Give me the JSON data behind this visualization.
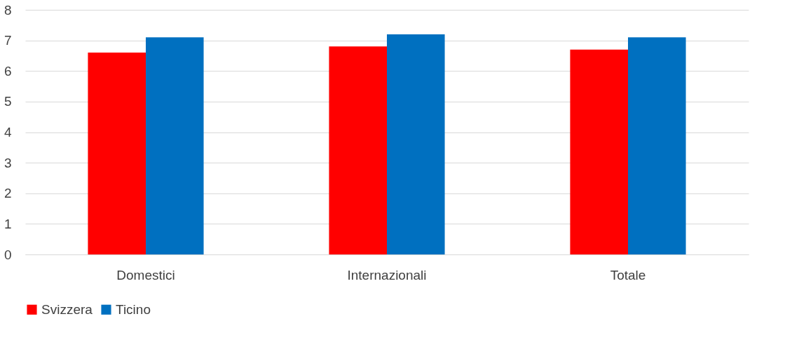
{
  "chart_data": {
    "type": "bar",
    "categories": [
      "Domestici",
      "Internazionali",
      "Totale"
    ],
    "series": [
      {
        "name": "Svizzera",
        "color": "#ff0000",
        "values": [
          6.6,
          6.8,
          6.7
        ]
      },
      {
        "name": "Ticino",
        "color": "#0070c0",
        "values": [
          7.1,
          7.2,
          7.1
        ]
      }
    ],
    "ylim": [
      0,
      8
    ],
    "yticks": [
      0,
      1,
      2,
      3,
      4,
      5,
      6,
      7,
      8
    ],
    "grid": "y",
    "legend": "bottom"
  }
}
